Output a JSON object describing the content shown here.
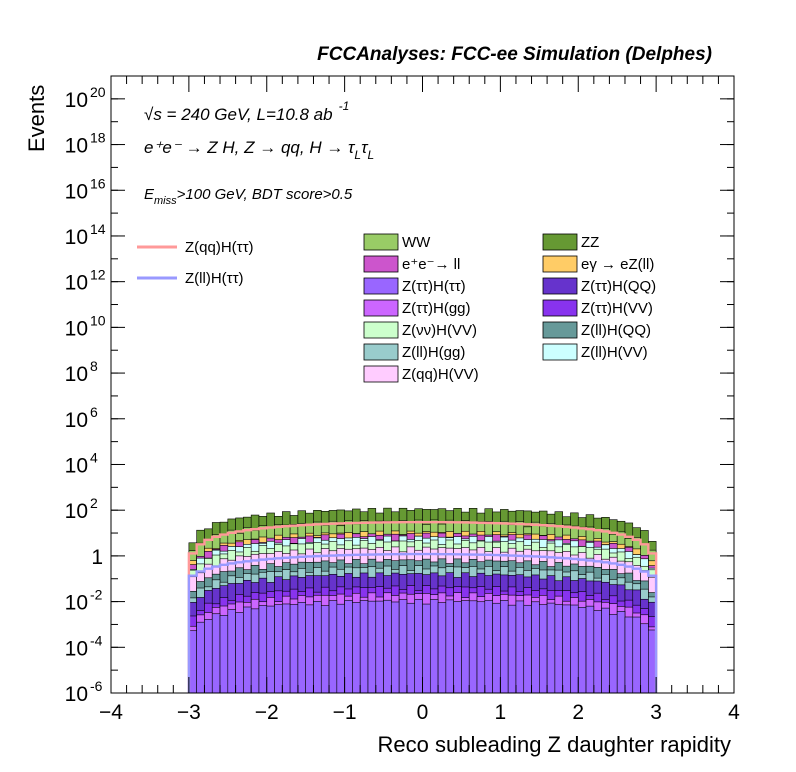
{
  "chart_data": {
    "type": "histogram",
    "title": "FCCAnalyses: FCC-ee Simulation (Delphes)",
    "xlabel": "Reco subleading Z daughter rapidity",
    "ylabel": "Events",
    "xlim": [
      -4,
      4
    ],
    "ylim": [
      1e-06,
      1e+21
    ],
    "yscale": "log",
    "grid": false,
    "legend_placement": "top-center",
    "annotations": {
      "energy_line": "√s = 240 GeV, L=10.8 ab",
      "energy_exponent": "-1",
      "process_line": "e⁺e⁻ → Z H, Z  → qq, H  →  τ",
      "process_sub1": "L",
      "process_tau2": "τ",
      "process_sub2": "L",
      "cut_e": "E",
      "cut_sub": "miss",
      "cut_rest": ">100 GeV, BDT score>0.5"
    },
    "x_ticks": [
      "−4",
      "−3",
      "−2",
      "−1",
      "0",
      "1",
      "2",
      "3",
      "4"
    ],
    "y_ticks": [
      {
        "base": "10",
        "exp": "20",
        "value": 1e+20
      },
      {
        "base": "10",
        "exp": "18",
        "value": 1e+18
      },
      {
        "base": "10",
        "exp": "16",
        "value": 1e+16
      },
      {
        "base": "10",
        "exp": "14",
        "value": 100000000000000.0
      },
      {
        "base": "10",
        "exp": "12",
        "value": 1000000000000.0
      },
      {
        "base": "10",
        "exp": "10",
        "value": 10000000000.0
      },
      {
        "base": "10",
        "exp": "8",
        "value": 100000000.0
      },
      {
        "base": "10",
        "exp": "6",
        "value": 1000000.0
      },
      {
        "base": "10",
        "exp": "4",
        "value": 10000.0
      },
      {
        "base": "10",
        "exp": "2",
        "value": 100
      },
      {
        "base": "1",
        "exp": "",
        "value": 1
      },
      {
        "base": "10",
        "exp": "-2",
        "value": 0.01
      },
      {
        "base": "10",
        "exp": "-4",
        "value": 0.0001
      },
      {
        "base": "10",
        "exp": "-6",
        "value": 1e-06
      }
    ],
    "bin_range": [
      -3,
      3
    ],
    "stacked_series": [
      {
        "name": "Z(ττ)H(ττ)",
        "color": "#9966ff",
        "level": 0.01
      },
      {
        "name": "Z(ττ)H(gg)",
        "color": "#cc66ff",
        "level": 0.02
      },
      {
        "name": "Z(ττ)H(VV)",
        "color": "#8833ee",
        "level": 0.04
      },
      {
        "name": "Z(ττ)H(QQ)",
        "color": "#6633cc",
        "level": 0.15
      },
      {
        "name": "Z(ll)H(gg)",
        "color": "#99cccc",
        "level": 0.3
      },
      {
        "name": "Z(ll)H(QQ)",
        "color": "#669999",
        "level": 0.6
      },
      {
        "name": "Z(qq)H(VV)",
        "color": "#ffccff",
        "level": 2
      },
      {
        "name": "Z(νν)H(VV)",
        "color": "#ccffcc",
        "level": 4
      },
      {
        "name": "Z(ll)H(VV)",
        "color": "#ccffff",
        "level": 6
      },
      {
        "name": "e⁺e⁻→ ll",
        "color": "#cc55cc",
        "level": 8
      },
      {
        "name": "eγ → eZ(ll)",
        "color": "#ffcc66",
        "level": 10
      },
      {
        "name": "WW",
        "color": "#99cc66",
        "level": 30
      },
      {
        "name": "ZZ",
        "color": "#669933",
        "level": 100
      }
    ],
    "line_series": [
      {
        "name": "Z(qq)H(ττ)",
        "color": "#ff9999",
        "peak": 30,
        "edge": 0.3
      },
      {
        "name": "Z(ll)H(ττ)",
        "color": "#9999ff",
        "peak": 1.2,
        "edge": 0.1
      }
    ],
    "legend_columns": [
      [
        "WW",
        "e⁺e⁻→ ll",
        "Z(ττ)H(ττ)",
        "Z(ττ)H(gg)",
        "Z(νν)H(VV)",
        "Z(ll)H(gg)",
        "Z(qq)H(VV)"
      ],
      [
        "ZZ",
        "eγ → eZ(ll)",
        "Z(ττ)H(QQ)",
        "Z(ττ)H(VV)",
        "Z(ll)H(QQ)",
        "Z(ll)H(VV)"
      ]
    ]
  }
}
